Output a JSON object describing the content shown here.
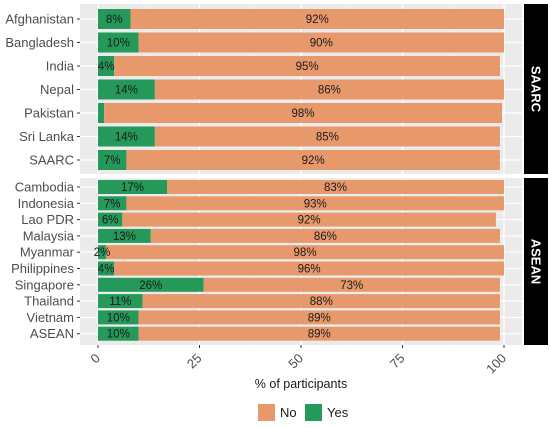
{
  "chart_data": {
    "type": "bar",
    "orientation": "horizontal",
    "stacked": true,
    "xlabel": "% of participants",
    "xlim": [
      0,
      100
    ],
    "xticks": [
      0,
      25,
      50,
      75,
      100
    ],
    "xtick_labels": [
      "0",
      "25",
      "50",
      "75",
      "100"
    ],
    "grid": true,
    "legend": {
      "position": "bottom",
      "entries": [
        {
          "name": "No",
          "color": "#E8996B"
        },
        {
          "name": "Yes",
          "color": "#24995A"
        }
      ]
    },
    "panels": [
      {
        "strip": "SAARC",
        "rows": [
          {
            "category": "Afghanistan",
            "yes": 8,
            "no": 92,
            "yes_label": "8%",
            "no_label": "92%"
          },
          {
            "category": "Bangladesh",
            "yes": 10,
            "no": 90,
            "yes_label": "10%",
            "no_label": "90%"
          },
          {
            "category": "India",
            "yes": 4,
            "no": 95,
            "yes_label": "4%",
            "no_label": "95%"
          },
          {
            "category": "Nepal",
            "yes": 14,
            "no": 86,
            "yes_label": "14%",
            "no_label": "86%"
          },
          {
            "category": "Pakistan",
            "yes": 1.5,
            "no": 98,
            "yes_label": "",
            "no_label": "98%"
          },
          {
            "category": "Sri Lanka",
            "yes": 14,
            "no": 85,
            "yes_label": "14%",
            "no_label": "85%"
          },
          {
            "category": "SAARC",
            "yes": 7,
            "no": 92,
            "yes_label": "7%",
            "no_label": "92%"
          }
        ]
      },
      {
        "strip": "ASEAN",
        "rows": [
          {
            "category": "Cambodia",
            "yes": 17,
            "no": 83,
            "yes_label": "17%",
            "no_label": "83%"
          },
          {
            "category": "Indonesia",
            "yes": 7,
            "no": 93,
            "yes_label": "7%",
            "no_label": "93%"
          },
          {
            "category": "Lao PDR",
            "yes": 6,
            "no": 92,
            "yes_label": "6%",
            "no_label": "92%"
          },
          {
            "category": "Malaysia",
            "yes": 13,
            "no": 86,
            "yes_label": "13%",
            "no_label": "86%"
          },
          {
            "category": "Myanmar",
            "yes": 2,
            "no": 98,
            "yes_label": "2%",
            "no_label": "98%"
          },
          {
            "category": "Philippines",
            "yes": 4,
            "no": 96,
            "yes_label": "4%",
            "no_label": "96%"
          },
          {
            "category": "Singapore",
            "yes": 26,
            "no": 73,
            "yes_label": "26%",
            "no_label": "73%"
          },
          {
            "category": "Thailand",
            "yes": 11,
            "no": 88,
            "yes_label": "11%",
            "no_label": "88%"
          },
          {
            "category": "Vietnam",
            "yes": 10,
            "no": 89,
            "yes_label": "10%",
            "no_label": "89%"
          },
          {
            "category": "ASEAN",
            "yes": 10,
            "no": 89,
            "yes_label": "10%",
            "no_label": "89%"
          }
        ]
      }
    ]
  }
}
